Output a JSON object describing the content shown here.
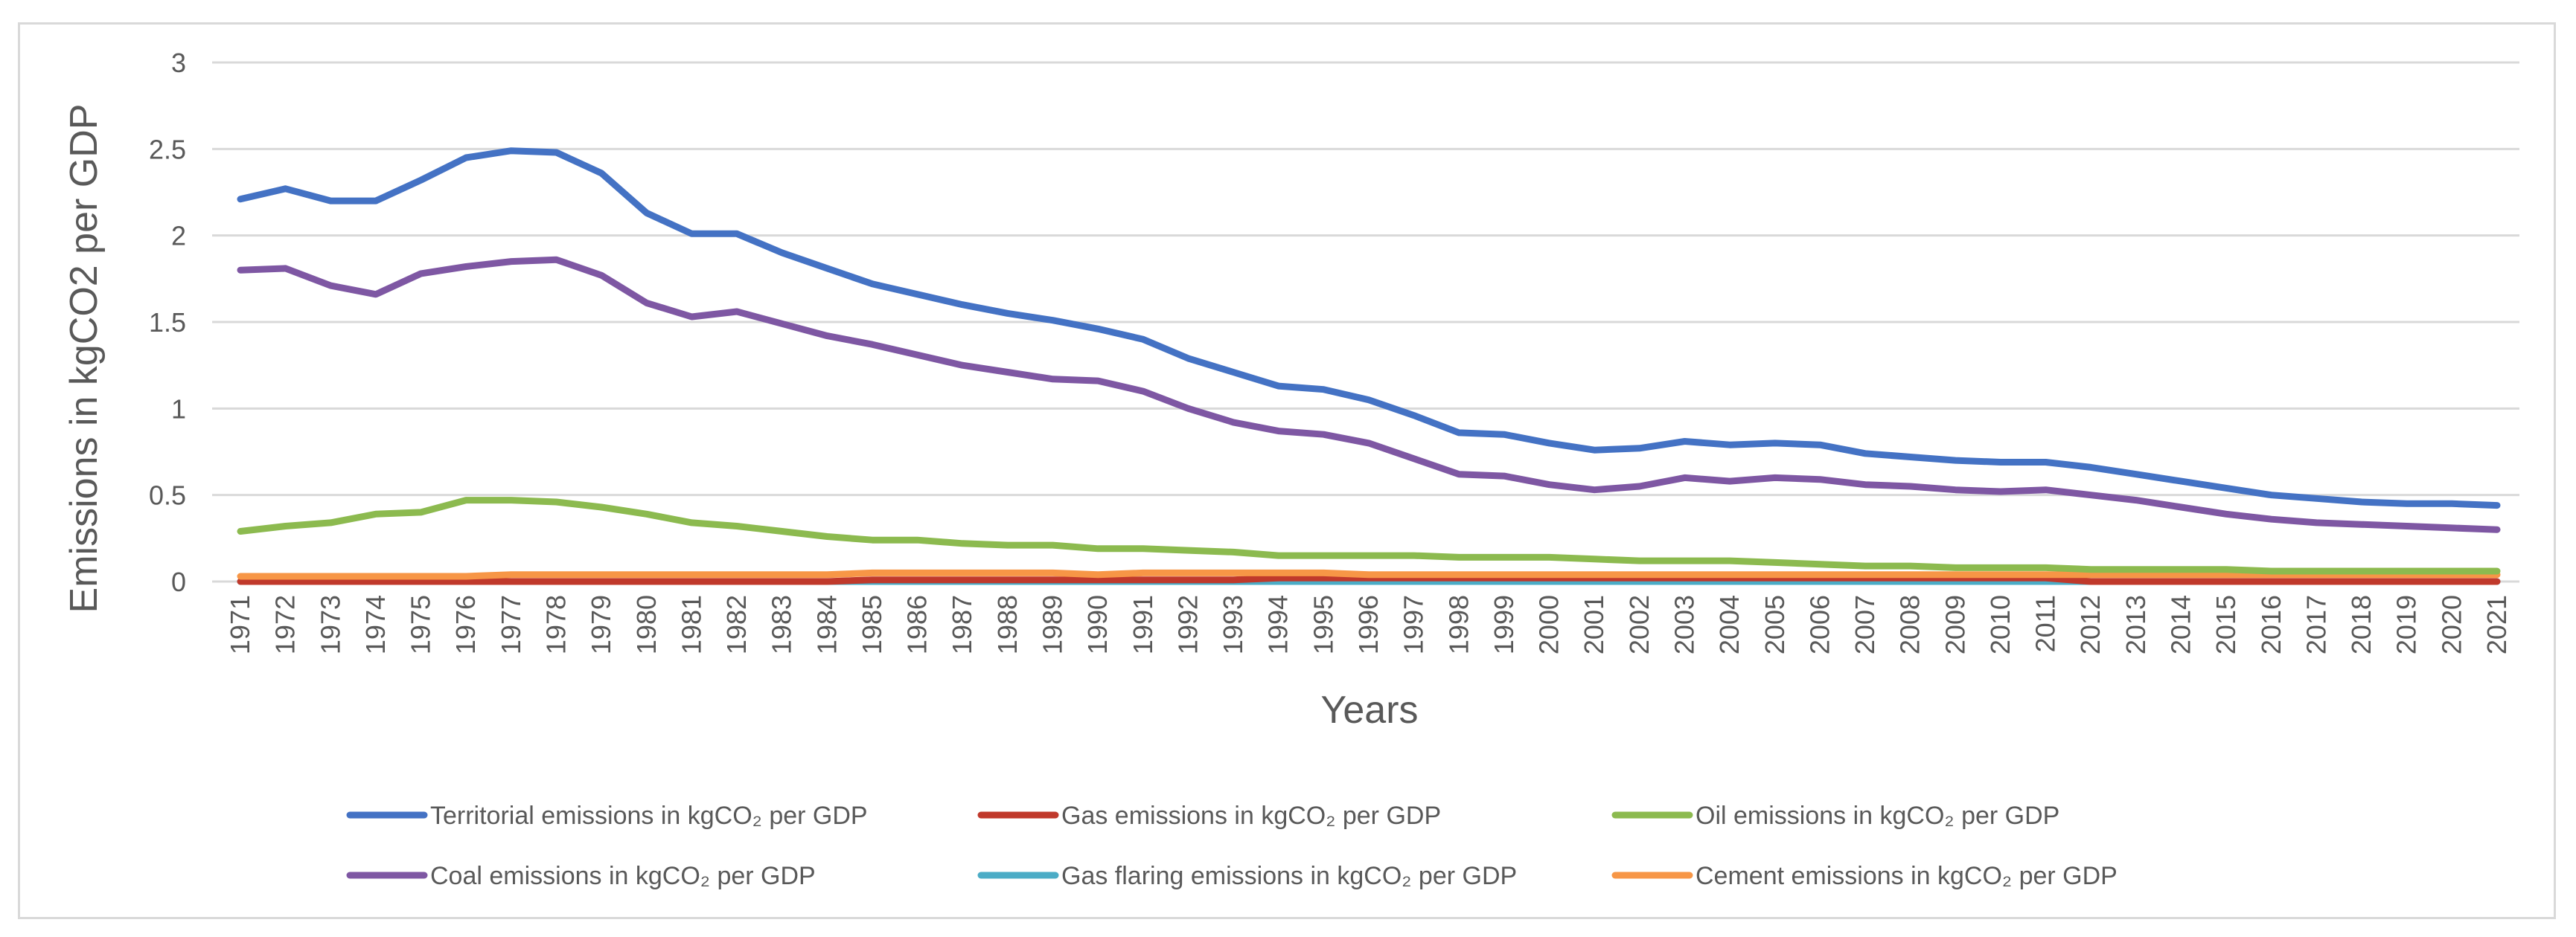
{
  "chart_data": {
    "type": "line",
    "title": "",
    "xlabel": "Years",
    "ylabel": "Emissions in kgCO2 per GDP",
    "ylim": [
      0,
      3
    ],
    "yticks": [
      "0",
      "0.5",
      "1",
      "1.5",
      "2",
      "2.5",
      "3"
    ],
    "ytick_values": [
      0,
      0.5,
      1,
      1.5,
      2,
      2.5,
      3
    ],
    "grid": true,
    "legend_position": "bottom",
    "categories": [
      "1971",
      "1972",
      "1973",
      "1974",
      "1975",
      "1976",
      "1977",
      "1978",
      "1979",
      "1980",
      "1981",
      "1982",
      "1983",
      "1984",
      "1985",
      "1986",
      "1987",
      "1988",
      "1989",
      "1990",
      "1991",
      "1992",
      "1993",
      "1994",
      "1995",
      "1996",
      "1997",
      "1998",
      "1999",
      "2000",
      "2001",
      "2002",
      "2003",
      "2004",
      "2005",
      "2006",
      "2007",
      "2008",
      "2009",
      "2010",
      "2011",
      "2012",
      "2013",
      "2014",
      "2015",
      "2016",
      "2017",
      "2018",
      "2019",
      "2020",
      "2021"
    ],
    "series": [
      {
        "name": "Territorial emissions in kgCO₂ per GDP",
        "color": "#4472c4",
        "values": [
          2.21,
          2.27,
          2.2,
          2.2,
          2.32,
          2.45,
          2.49,
          2.48,
          2.36,
          2.13,
          2.01,
          2.01,
          1.9,
          1.81,
          1.72,
          1.66,
          1.6,
          1.55,
          1.51,
          1.46,
          1.4,
          1.29,
          1.21,
          1.13,
          1.11,
          1.05,
          0.96,
          0.86,
          0.85,
          0.8,
          0.76,
          0.77,
          0.81,
          0.79,
          0.8,
          0.79,
          0.74,
          0.72,
          0.7,
          0.69,
          0.69,
          0.66,
          0.62,
          0.58,
          0.54,
          0.5,
          0.48,
          0.46,
          0.45,
          0.45,
          0.44
        ]
      },
      {
        "name": "Gas emissions in kgCO₂ per GDP",
        "color": "#c0392b",
        "values": [
          0,
          0,
          0,
          0,
          0,
          0,
          0,
          0,
          0,
          0,
          0,
          0,
          0,
          0,
          0.01,
          0.01,
          0.01,
          0.01,
          0.01,
          0.01,
          0.01,
          0.01,
          0.01,
          0.02,
          0.02,
          0.02,
          0.02,
          0.02,
          0.02,
          0.02,
          0.02,
          0.02,
          0.02,
          0.02,
          0.02,
          0.02,
          0.02,
          0.02,
          0.02,
          0.02,
          0.02,
          0,
          0,
          0,
          0,
          0,
          0,
          0,
          0,
          0,
          0
        ]
      },
      {
        "name": "Oil emissions in kgCO₂ per GDP",
        "color": "#8cba4f",
        "values": [
          0.29,
          0.32,
          0.34,
          0.39,
          0.4,
          0.47,
          0.47,
          0.46,
          0.43,
          0.39,
          0.34,
          0.32,
          0.29,
          0.26,
          0.24,
          0.24,
          0.22,
          0.21,
          0.21,
          0.19,
          0.19,
          0.18,
          0.17,
          0.15,
          0.15,
          0.15,
          0.15,
          0.14,
          0.14,
          0.14,
          0.13,
          0.12,
          0.12,
          0.12,
          0.11,
          0.1,
          0.09,
          0.09,
          0.08,
          0.08,
          0.08,
          0.07,
          0.07,
          0.07,
          0.07,
          0.06,
          0.06,
          0.06,
          0.06,
          0.06,
          0.06
        ]
      },
      {
        "name": "Coal emissions in kgCO₂ per GDP",
        "color": "#7e57a3",
        "values": [
          1.8,
          1.81,
          1.71,
          1.66,
          1.78,
          1.82,
          1.85,
          1.86,
          1.77,
          1.61,
          1.53,
          1.56,
          1.49,
          1.42,
          1.37,
          1.31,
          1.25,
          1.21,
          1.17,
          1.16,
          1.1,
          1.0,
          0.92,
          0.87,
          0.85,
          0.8,
          0.71,
          0.62,
          0.61,
          0.56,
          0.53,
          0.55,
          0.6,
          0.58,
          0.6,
          0.59,
          0.56,
          0.55,
          0.53,
          0.52,
          0.53,
          0.5,
          0.47,
          0.43,
          0.39,
          0.36,
          0.34,
          0.33,
          0.32,
          0.31,
          0.3
        ]
      },
      {
        "name": "Gas flaring emissions in kgCO₂ per GDP",
        "color": "#4bacc6",
        "values": [
          0,
          0,
          0,
          0,
          0,
          0,
          0,
          0,
          0,
          0,
          0,
          0,
          0,
          0,
          0,
          0,
          0,
          0,
          0,
          0,
          0,
          0,
          0,
          0,
          0,
          0,
          0,
          0,
          0,
          0,
          0,
          0,
          0,
          0,
          0,
          0,
          0,
          0,
          0,
          0,
          0,
          0,
          0,
          0,
          0,
          0,
          0,
          0,
          0,
          0,
          0
        ]
      },
      {
        "name": "Cement emissions in kgCO₂ per GDP",
        "color": "#f79646",
        "values": [
          0.03,
          0.03,
          0.03,
          0.03,
          0.03,
          0.03,
          0.04,
          0.04,
          0.04,
          0.04,
          0.04,
          0.04,
          0.04,
          0.04,
          0.05,
          0.05,
          0.05,
          0.05,
          0.05,
          0.04,
          0.05,
          0.05,
          0.05,
          0.05,
          0.05,
          0.04,
          0.04,
          0.04,
          0.04,
          0.04,
          0.04,
          0.04,
          0.04,
          0.04,
          0.04,
          0.04,
          0.04,
          0.04,
          0.04,
          0.04,
          0.04,
          0.04,
          0.04,
          0.04,
          0.04,
          0.04,
          0.04,
          0.04,
          0.04,
          0.04,
          0.04
        ]
      }
    ]
  }
}
